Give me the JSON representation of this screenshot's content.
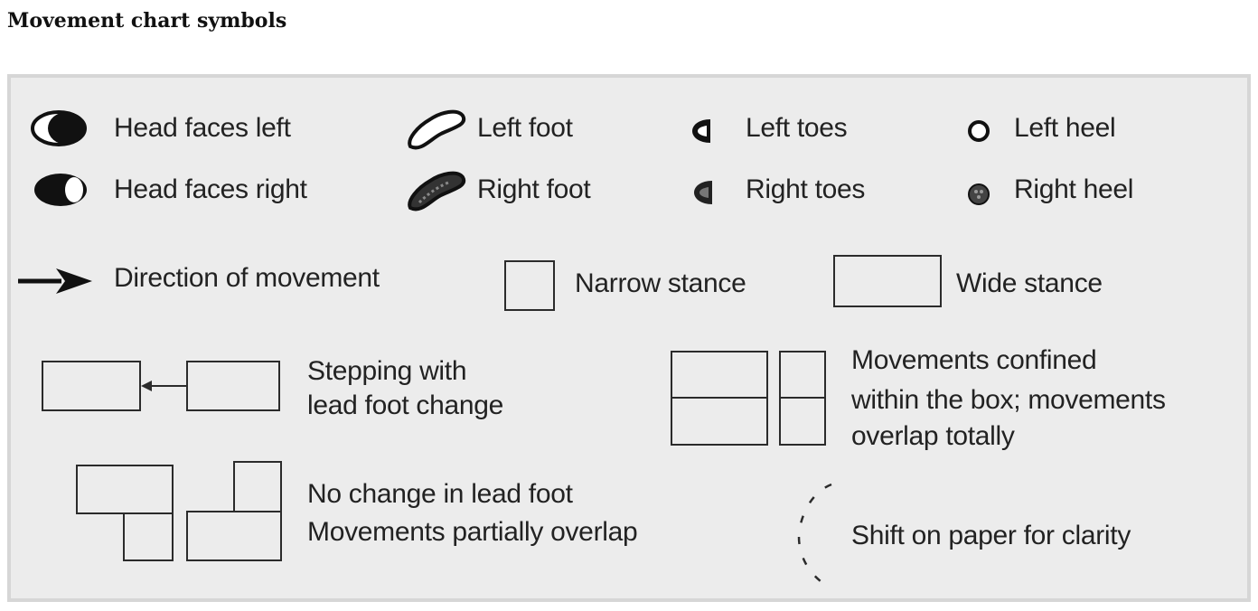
{
  "title": "Movement chart symbols",
  "legend": {
    "head_faces_left": "Head faces left",
    "head_faces_right": "Head faces right",
    "left_foot": "Left foot",
    "right_foot": "Right foot",
    "left_toes": "Left toes",
    "right_toes": "Right toes",
    "left_heel": "Left heel",
    "right_heel": "Right heel",
    "direction": "Direction of movement",
    "narrow_stance": "Narrow stance",
    "wide_stance": "Wide stance",
    "stepping_line1": "Stepping with",
    "stepping_line2": "lead foot change",
    "confined_line1": "Movements confined",
    "confined_line2": "within the box; movements",
    "confined_line3": "overlap totally",
    "nochange_line1": "No change in lead foot",
    "nochange_line2": "Movements partially overlap",
    "shift": "Shift on paper for clarity"
  },
  "colors": {
    "panel": "#ececec",
    "panel_border": "#d6d6d6",
    "ink": "#222222"
  }
}
